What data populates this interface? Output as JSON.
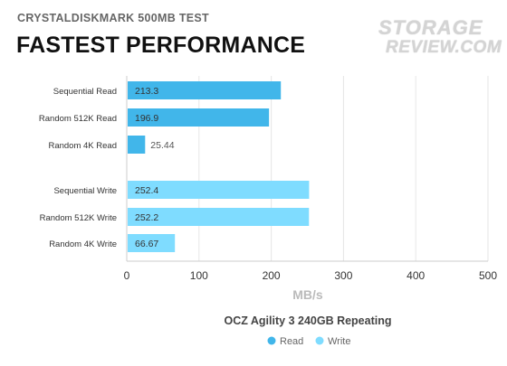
{
  "header": {
    "subtitle": "CRYSTALDISKMARK 500MB TEST",
    "title": "FASTEST PERFORMANCE"
  },
  "logo": {
    "line1": "STORAGE",
    "line2": "REVIEW.COM"
  },
  "chart_data": {
    "type": "bar",
    "orientation": "horizontal",
    "title": "FASTEST PERFORMANCE",
    "subtitle": "CRYSTALDISKMARK 500MB TEST",
    "xlabel": "MB/s",
    "legend_title": "OCZ Agility 3 240GB Repeating",
    "legend_placement": "bottom-center",
    "xlim": [
      0,
      500
    ],
    "xticks": [
      0,
      100,
      200,
      300,
      400,
      500
    ],
    "grid": true,
    "categories": [
      "Sequential Read",
      "Random 512K Read",
      "Random 4K Read",
      "Sequential Write",
      "Random 512K Write",
      "Random 4K Write"
    ],
    "values": [
      213.3,
      196.9,
      25.44,
      252.4,
      252.2,
      66.67
    ],
    "value_labels": [
      "213.3",
      "196.9",
      "25.44",
      "252.4",
      "252.2",
      "66.67"
    ],
    "series_of_bar": [
      "Read",
      "Read",
      "Read",
      "Write",
      "Write",
      "Write"
    ],
    "series": [
      {
        "name": "Read",
        "color": "#41b6ea"
      },
      {
        "name": "Write",
        "color": "#7fdcff"
      }
    ]
  },
  "colors": {
    "grid": "#e6e6e6",
    "axis": "#cccccc",
    "text_dark": "#333333",
    "axis_title": "#bbbbbb"
  }
}
